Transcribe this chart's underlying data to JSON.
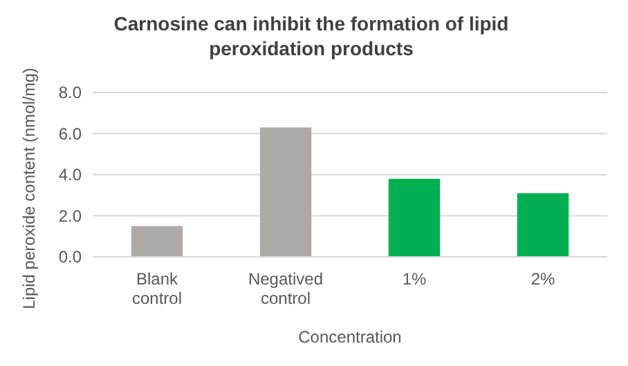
{
  "chart_data": {
    "type": "bar",
    "title": "Carnosine can inhibit the formation of lipid peroxidation products",
    "xlabel": "Concentration",
    "ylabel": "Lipid peroxide content (nmol/mg)",
    "categories": [
      "Blank control",
      "Negatived control",
      "1%",
      "2%"
    ],
    "values": [
      1.5,
      6.3,
      3.8,
      3.1
    ],
    "colors": [
      "#aeaaaa",
      "#aeaaaa",
      "#00b050",
      "#00b050"
    ],
    "ylim": [
      0,
      8
    ],
    "yticks": [
      {
        "value": 0,
        "label": "0.0"
      },
      {
        "value": 2,
        "label": "2.0"
      },
      {
        "value": 4,
        "label": "4.0"
      },
      {
        "value": 6,
        "label": "6.0"
      },
      {
        "value": 8,
        "label": "8.0"
      }
    ],
    "grid": "y"
  }
}
